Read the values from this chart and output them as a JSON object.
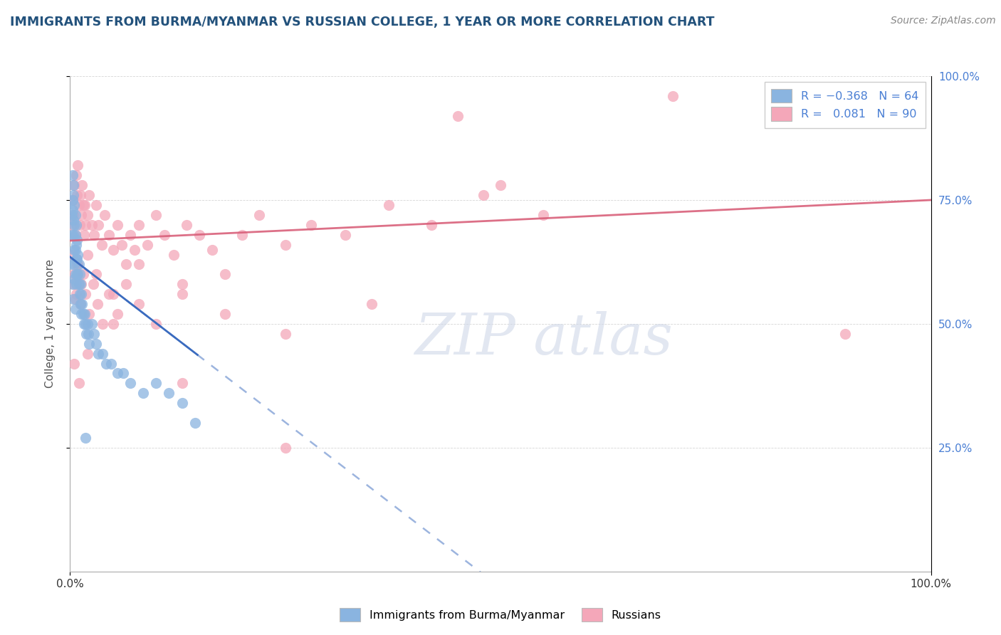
{
  "title": "IMMIGRANTS FROM BURMA/MYANMAR VS RUSSIAN COLLEGE, 1 YEAR OR MORE CORRELATION CHART",
  "source": "Source: ZipAtlas.com",
  "ylabel": "College, 1 year or more",
  "blue_color": "#8ab4e0",
  "pink_color": "#f4a7b9",
  "blue_line_color": "#3a6bbf",
  "pink_line_color": "#d9607a",
  "blue_R": -0.368,
  "blue_N": 64,
  "pink_R": 0.081,
  "pink_N": 90,
  "blue_scatter_x": [
    0.001,
    0.002,
    0.002,
    0.003,
    0.003,
    0.003,
    0.004,
    0.004,
    0.004,
    0.004,
    0.005,
    0.005,
    0.005,
    0.005,
    0.005,
    0.006,
    0.006,
    0.006,
    0.006,
    0.007,
    0.007,
    0.007,
    0.007,
    0.008,
    0.008,
    0.008,
    0.009,
    0.009,
    0.01,
    0.01,
    0.011,
    0.011,
    0.012,
    0.012,
    0.013,
    0.013,
    0.014,
    0.015,
    0.016,
    0.017,
    0.018,
    0.019,
    0.02,
    0.021,
    0.022,
    0.025,
    0.028,
    0.03,
    0.033,
    0.038,
    0.042,
    0.048,
    0.055,
    0.062,
    0.07,
    0.085,
    0.1,
    0.115,
    0.13,
    0.145,
    0.003,
    0.004,
    0.006,
    0.018
  ],
  "blue_scatter_y": [
    0.62,
    0.68,
    0.72,
    0.75,
    0.8,
    0.73,
    0.78,
    0.76,
    0.71,
    0.68,
    0.74,
    0.7,
    0.65,
    0.62,
    0.59,
    0.72,
    0.68,
    0.65,
    0.6,
    0.7,
    0.66,
    0.63,
    0.58,
    0.67,
    0.63,
    0.6,
    0.64,
    0.6,
    0.62,
    0.58,
    0.6,
    0.56,
    0.58,
    0.54,
    0.56,
    0.52,
    0.54,
    0.52,
    0.5,
    0.52,
    0.5,
    0.48,
    0.5,
    0.48,
    0.46,
    0.5,
    0.48,
    0.46,
    0.44,
    0.44,
    0.42,
    0.42,
    0.4,
    0.4,
    0.38,
    0.36,
    0.38,
    0.36,
    0.34,
    0.3,
    0.58,
    0.55,
    0.53,
    0.27
  ],
  "pink_scatter_x": [
    0.002,
    0.003,
    0.004,
    0.005,
    0.006,
    0.007,
    0.008,
    0.009,
    0.01,
    0.011,
    0.012,
    0.013,
    0.014,
    0.015,
    0.016,
    0.017,
    0.018,
    0.02,
    0.022,
    0.025,
    0.028,
    0.03,
    0.033,
    0.037,
    0.04,
    0.045,
    0.05,
    0.055,
    0.06,
    0.065,
    0.07,
    0.075,
    0.08,
    0.09,
    0.1,
    0.11,
    0.12,
    0.135,
    0.15,
    0.165,
    0.18,
    0.2,
    0.22,
    0.25,
    0.28,
    0.32,
    0.37,
    0.42,
    0.48,
    0.55,
    0.004,
    0.006,
    0.008,
    0.01,
    0.012,
    0.015,
    0.018,
    0.022,
    0.027,
    0.032,
    0.038,
    0.045,
    0.055,
    0.065,
    0.08,
    0.1,
    0.13,
    0.18,
    0.25,
    0.35,
    0.003,
    0.005,
    0.007,
    0.009,
    0.013,
    0.02,
    0.03,
    0.05,
    0.08,
    0.13,
    0.25,
    0.45,
    0.7,
    0.9,
    0.005,
    0.01,
    0.02,
    0.05,
    0.13,
    0.5
  ],
  "pink_scatter_y": [
    0.7,
    0.75,
    0.72,
    0.78,
    0.68,
    0.8,
    0.76,
    0.82,
    0.74,
    0.7,
    0.76,
    0.72,
    0.78,
    0.74,
    0.68,
    0.74,
    0.7,
    0.72,
    0.76,
    0.7,
    0.68,
    0.74,
    0.7,
    0.66,
    0.72,
    0.68,
    0.65,
    0.7,
    0.66,
    0.62,
    0.68,
    0.65,
    0.7,
    0.66,
    0.72,
    0.68,
    0.64,
    0.7,
    0.68,
    0.65,
    0.6,
    0.68,
    0.72,
    0.66,
    0.7,
    0.68,
    0.74,
    0.7,
    0.76,
    0.72,
    0.58,
    0.55,
    0.62,
    0.58,
    0.54,
    0.6,
    0.56,
    0.52,
    0.58,
    0.54,
    0.5,
    0.56,
    0.52,
    0.58,
    0.54,
    0.5,
    0.56,
    0.52,
    0.48,
    0.54,
    0.64,
    0.6,
    0.56,
    0.62,
    0.58,
    0.64,
    0.6,
    0.56,
    0.62,
    0.58,
    0.25,
    0.92,
    0.96,
    0.48,
    0.42,
    0.38,
    0.44,
    0.5,
    0.38,
    0.78
  ]
}
